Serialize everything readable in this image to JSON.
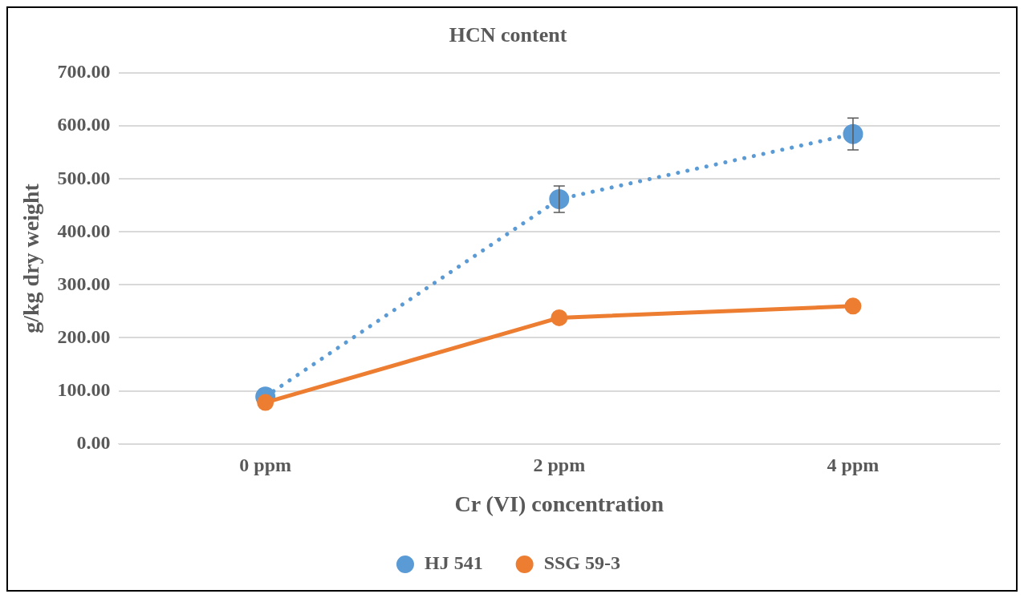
{
  "chart_data": {
    "type": "line",
    "title": "HCN content",
    "xlabel": "Cr (VI) concentration",
    "ylabel": "g/kg dry weight",
    "categories": [
      "0 ppm",
      "2 ppm",
      "4 ppm"
    ],
    "series": [
      {
        "name": "HJ 541",
        "color": "#5b9bd5",
        "values": [
          89,
          462,
          585
        ],
        "errors": [
          null,
          25,
          30
        ],
        "line_style": "dotted"
      },
      {
        "name": "SSG 59-3",
        "color": "#ed7d31",
        "values": [
          78,
          238,
          260
        ],
        "line_style": "solid"
      }
    ],
    "ylim": [
      0,
      700
    ],
    "yticks": [
      {
        "value": 0,
        "label": "0.00"
      },
      {
        "value": 100,
        "label": "100.00"
      },
      {
        "value": 200,
        "label": "200.00"
      },
      {
        "value": 300,
        "label": "300.00"
      },
      {
        "value": 400,
        "label": "400.00"
      },
      {
        "value": 500,
        "label": "500.00"
      },
      {
        "value": 600,
        "label": "600.00"
      },
      {
        "value": 700,
        "label": "700.00"
      }
    ],
    "grid": "y",
    "legend": "bottom",
    "marker": "circle"
  }
}
